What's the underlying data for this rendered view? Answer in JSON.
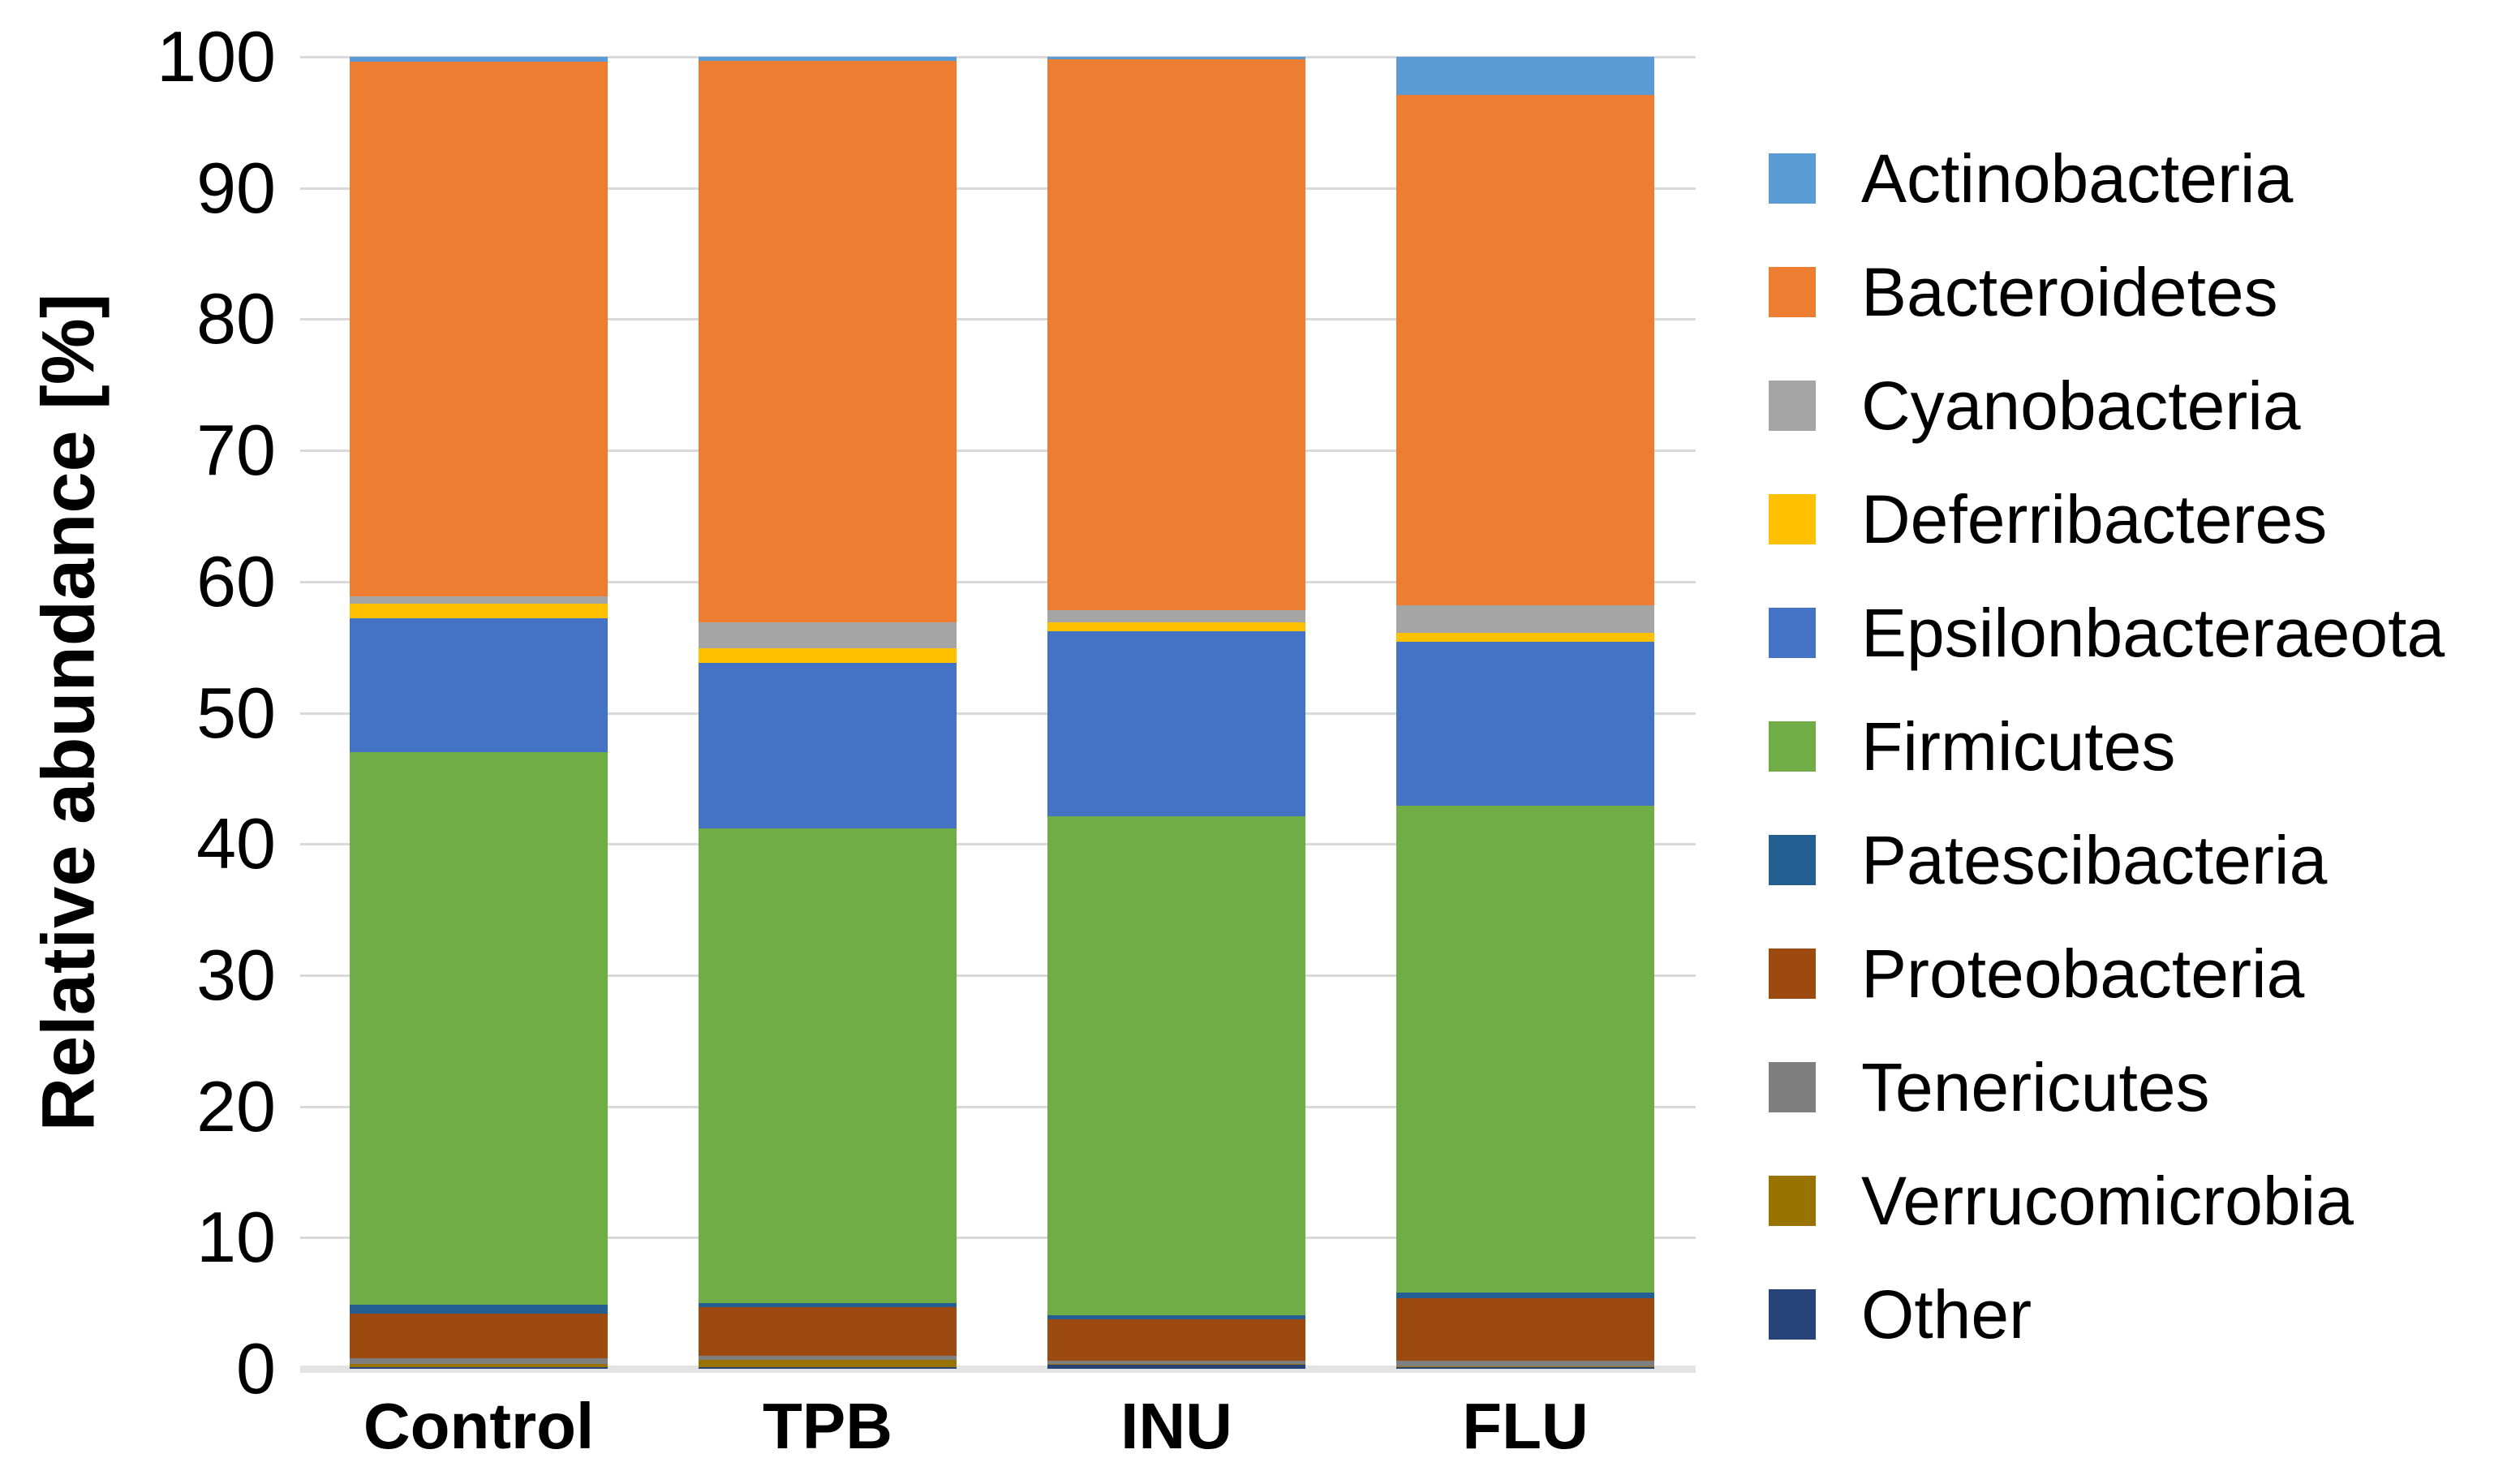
{
  "chart_data": {
    "type": "bar",
    "stacked": true,
    "title": "",
    "xlabel": "",
    "ylabel": "Relative abundance [%]",
    "ylim": [
      0,
      100
    ],
    "ytick_step": 10,
    "grid": true,
    "legend_position": "right",
    "categories": [
      "Control",
      "TPB",
      "INU",
      "FLU"
    ],
    "series": [
      {
        "name": "Actinobacteria",
        "color": "#5B9BD5",
        "values": [
          0.4,
          0.3,
          0.2,
          2.9
        ]
      },
      {
        "name": "Bacteroidetes",
        "color": "#ED7D31",
        "values": [
          40.7,
          42.8,
          42.0,
          38.9
        ]
      },
      {
        "name": "Cyanobacteria",
        "color": "#A5A5A5",
        "values": [
          0.6,
          2.0,
          0.9,
          2.1
        ]
      },
      {
        "name": "Deferribacteres",
        "color": "#FFC000",
        "values": [
          1.1,
          1.1,
          0.7,
          0.7
        ]
      },
      {
        "name": "Epsilonbacteraeota",
        "color": "#4472C4",
        "values": [
          10.2,
          12.6,
          14.1,
          12.5
        ]
      },
      {
        "name": "Firmicutes",
        "color": "#70AD47",
        "values": [
          42.1,
          36.2,
          38.0,
          37.1
        ]
      },
      {
        "name": "Patescibacteria",
        "color": "#255E91",
        "values": [
          0.7,
          0.3,
          0.3,
          0.4
        ]
      },
      {
        "name": "Proteobacteria",
        "color": "#9C4A10",
        "values": [
          3.4,
          3.7,
          3.2,
          4.8
        ]
      },
      {
        "name": "Tenericutes",
        "color": "#7F7F7F",
        "values": [
          0.4,
          0.3,
          0.2,
          0.4
        ]
      },
      {
        "name": "Verrucomicrobia",
        "color": "#997300",
        "values": [
          0.3,
          0.6,
          0.1,
          0.1
        ]
      },
      {
        "name": "Other",
        "color": "#264478",
        "values": [
          0.1,
          0.1,
          0.3,
          0.1
        ]
      }
    ]
  }
}
